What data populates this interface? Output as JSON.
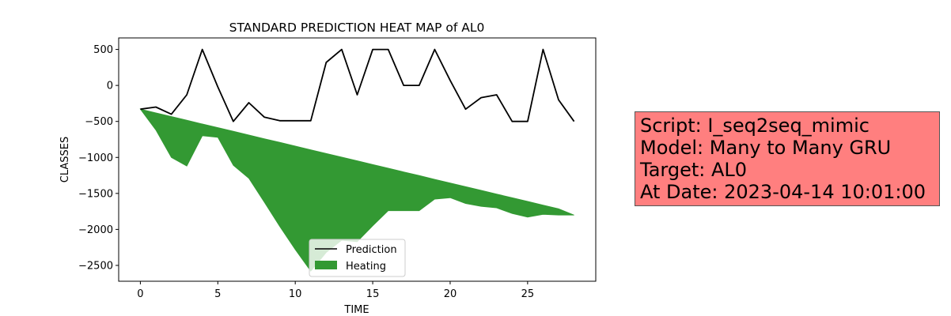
{
  "chart_data": {
    "type": "line",
    "title": "STANDARD PREDICTION HEAT MAP of AL0",
    "xlabel": "TIME",
    "ylabel": "CLASSES",
    "xlim": [
      -1.4,
      29.4
    ],
    "ylim": [
      -2720,
      660
    ],
    "xticks": [
      0,
      5,
      10,
      15,
      20,
      25
    ],
    "yticks": [
      500,
      0,
      -500,
      -1000,
      -1500,
      -2000,
      -2500
    ],
    "xtick_labels": [
      "0",
      "5",
      "10",
      "15",
      "20",
      "25"
    ],
    "ytick_labels": [
      "500",
      "0",
      "−500",
      "−1000",
      "−1500",
      "−2000",
      "−2500"
    ],
    "grid": false,
    "legend_position": "lower center",
    "series": [
      {
        "name": "Prediction",
        "kind": "line",
        "color": "#000000",
        "x": [
          0,
          1,
          2,
          3,
          4,
          5,
          6,
          7,
          8,
          9,
          10,
          11,
          12,
          13,
          14,
          15,
          16,
          17,
          18,
          19,
          20,
          21,
          22,
          23,
          24,
          25,
          26,
          27,
          28
        ],
        "y": [
          -330,
          -300,
          -400,
          -130,
          500,
          -20,
          -500,
          -240,
          -440,
          -490,
          -490,
          -490,
          320,
          500,
          -130,
          500,
          500,
          0,
          0,
          500,
          70,
          -330,
          -170,
          -130,
          -500,
          -500,
          500,
          -200,
          -500
        ]
      },
      {
        "name": "Heating",
        "kind": "fill_between",
        "color": "#339933",
        "x": [
          0,
          1,
          2,
          3,
          4,
          5,
          6,
          7,
          8,
          9,
          10,
          11,
          12,
          13,
          14,
          15,
          16,
          17,
          18,
          19,
          20,
          21,
          22,
          23,
          24,
          25,
          26,
          27,
          28
        ],
        "y_upper": [
          -330,
          -381,
          -432,
          -484,
          -535,
          -586,
          -637,
          -689,
          -740,
          -791,
          -842,
          -894,
          -945,
          -996,
          -1047,
          -1099,
          -1150,
          -1201,
          -1252,
          -1304,
          -1355,
          -1406,
          -1457,
          -1509,
          -1560,
          -1611,
          -1662,
          -1714,
          -1800
        ],
        "y_lower": [
          -330,
          -620,
          -1000,
          -1120,
          -700,
          -720,
          -1110,
          -1290,
          -1620,
          -1960,
          -2280,
          -2580,
          -2320,
          -2150,
          -2170,
          -1950,
          -1740,
          -1740,
          -1740,
          -1580,
          -1560,
          -1640,
          -1680,
          -1700,
          -1780,
          -1830,
          -1790,
          -1800,
          -1800
        ]
      }
    ]
  },
  "info_box": {
    "lines": [
      "Script: I_seq2seq_mimic",
      "Model: Many to Many GRU",
      "Target: AL0",
      "At Date: 2023-04-14 10:01:00"
    ],
    "background": "#ff7f7f"
  }
}
